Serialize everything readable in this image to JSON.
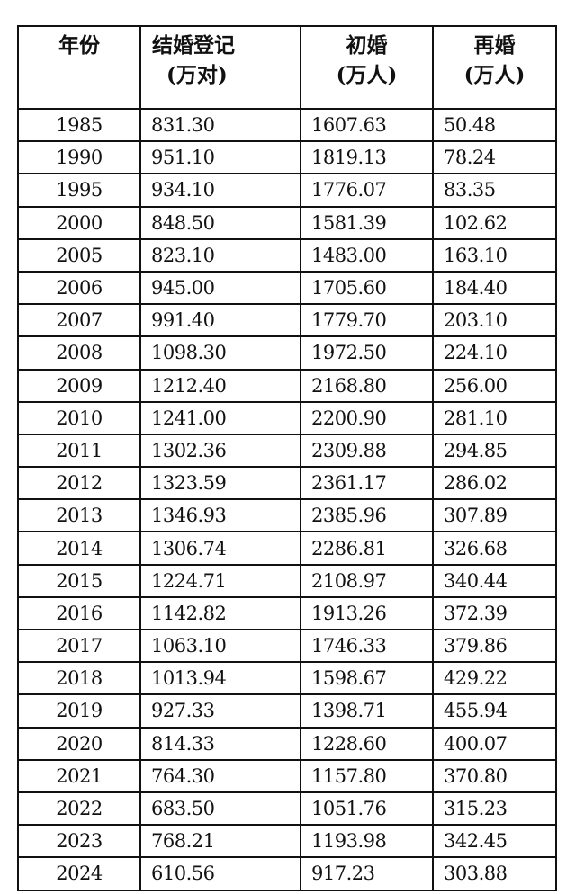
{
  "table": {
    "headers": [
      {
        "title": "年份",
        "unit": ""
      },
      {
        "title": "结婚登记",
        "unit": "(万对)"
      },
      {
        "title": "初婚",
        "unit": "(万人)"
      },
      {
        "title": "再婚",
        "unit": "(万人)"
      }
    ],
    "rows": [
      [
        "1985",
        "831.30",
        "1607.63",
        "50.48"
      ],
      [
        "1990",
        "951.10",
        "1819.13",
        "78.24"
      ],
      [
        "1995",
        "934.10",
        "1776.07",
        "83.35"
      ],
      [
        "2000",
        "848.50",
        "1581.39",
        "102.62"
      ],
      [
        "2005",
        "823.10",
        "1483.00",
        "163.10"
      ],
      [
        "2006",
        "945.00",
        "1705.60",
        "184.40"
      ],
      [
        "2007",
        "991.40",
        "1779.70",
        "203.10"
      ],
      [
        "2008",
        "1098.30",
        "1972.50",
        "224.10"
      ],
      [
        "2009",
        "1212.40",
        "2168.80",
        "256.00"
      ],
      [
        "2010",
        "1241.00",
        "2200.90",
        "281.10"
      ],
      [
        "2011",
        "1302.36",
        "2309.88",
        "294.85"
      ],
      [
        "2012",
        "1323.59",
        "2361.17",
        "286.02"
      ],
      [
        "2013",
        "1346.93",
        "2385.96",
        "307.89"
      ],
      [
        "2014",
        "1306.74",
        "2286.81",
        "326.68"
      ],
      [
        "2015",
        "1224.71",
        "2108.97",
        "340.44"
      ],
      [
        "2016",
        "1142.82",
        "1913.26",
        "372.39"
      ],
      [
        "2017",
        "1063.10",
        "1746.33",
        "379.86"
      ],
      [
        "2018",
        "1013.94",
        "1598.67",
        "429.22"
      ],
      [
        "2019",
        "927.33",
        "1398.71",
        "455.94"
      ],
      [
        "2020",
        "814.33",
        "1228.60",
        "400.07"
      ],
      [
        "2021",
        "764.30",
        "1157.80",
        "370.80"
      ],
      [
        "2022",
        "683.50",
        "1051.76",
        "315.23"
      ],
      [
        "2023",
        "768.21",
        "1193.98",
        "342.45"
      ],
      [
        "2024",
        "610.56",
        "917.23",
        "303.88"
      ]
    ]
  }
}
